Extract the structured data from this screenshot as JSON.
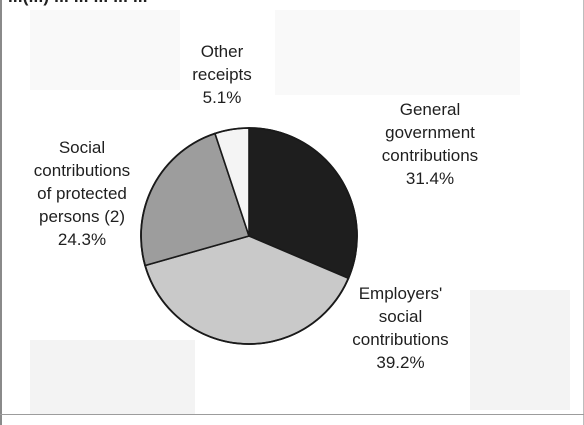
{
  "header": {
    "cut_title": "...(...) ... ... ... ... ..."
  },
  "chart_data": {
    "type": "pie",
    "title": "",
    "slices": [
      {
        "label": "General government contributions",
        "value": 31.4,
        "value_label": "31.4%",
        "color": "#1e1e1e",
        "label_lines": [
          "General",
          "government",
          "contributions"
        ]
      },
      {
        "label": "Employers' social contributions",
        "value": 39.2,
        "value_label": "39.2%",
        "color": "#c9c9c9",
        "label_lines": [
          "Employers'",
          "social",
          "contributions"
        ]
      },
      {
        "label": "Social contributions of protected persons (2)",
        "value": 24.3,
        "value_label": "24.3%",
        "color": "#9d9d9d",
        "label_lines": [
          "Social",
          "contributions",
          "of protected",
          "persons (2)"
        ]
      },
      {
        "label": "Other receipts",
        "value": 5.1,
        "value_label": "5.1%",
        "color": "#f4f4f4",
        "label_lines": [
          "Other",
          "receipts"
        ]
      }
    ],
    "start_angle_deg": 0,
    "direction": "clockwise",
    "legend": "none"
  }
}
